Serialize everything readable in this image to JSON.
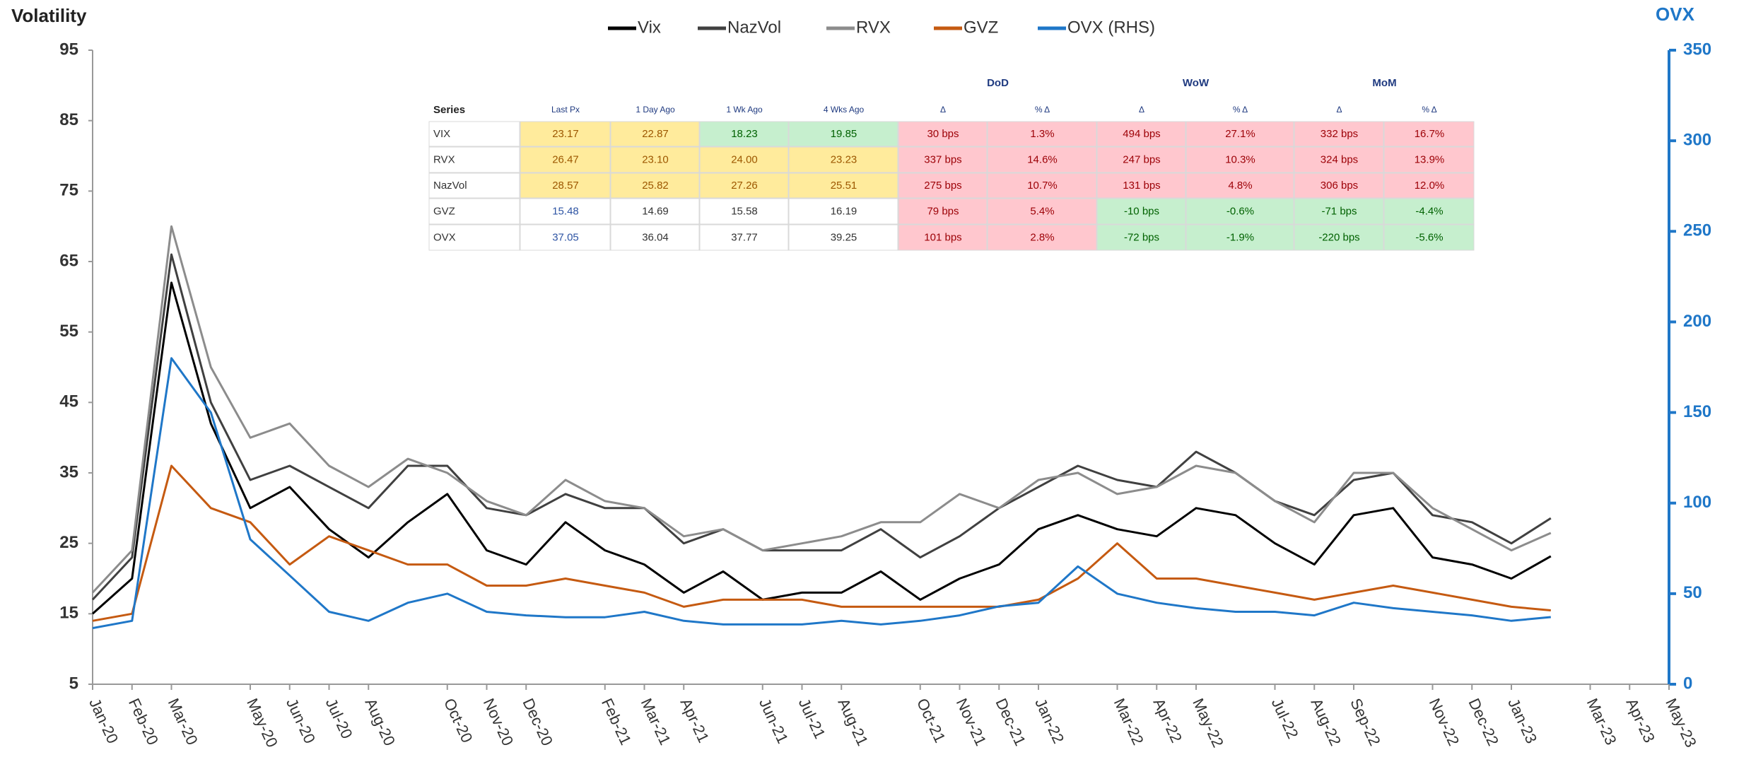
{
  "chart_data": {
    "type": "line",
    "y_label": "Volatility",
    "y2_label": "OVX",
    "x": [
      "2020-01",
      "2020-02",
      "2020-03",
      "2020-04",
      "2020-05",
      "2020-06",
      "2020-07",
      "2020-08",
      "2020-09",
      "2020-10",
      "2020-11",
      "2020-12",
      "2021-01",
      "2021-02",
      "2021-03",
      "2021-04",
      "2021-05",
      "2021-06",
      "2021-07",
      "2021-08",
      "2021-09",
      "2021-10",
      "2021-11",
      "2021-12",
      "2022-01",
      "2022-02",
      "2022-03",
      "2022-04",
      "2022-05",
      "2022-06",
      "2022-07",
      "2022-08",
      "2022-09",
      "2022-10",
      "2022-11",
      "2022-12",
      "2023-01",
      "2023-02"
    ],
    "xlim": [
      "2020-01",
      "2023-05"
    ],
    "xticks": [
      {
        "value": "2020-01",
        "label": "Jan-20"
      },
      {
        "value": "2020-02",
        "label": "Feb-20"
      },
      {
        "value": "2020-03",
        "label": "Mar-20"
      },
      {
        "value": "2020-05",
        "label": "May-20"
      },
      {
        "value": "2020-06",
        "label": "Jun-20"
      },
      {
        "value": "2020-07",
        "label": "Jul-20"
      },
      {
        "value": "2020-08",
        "label": "Aug-20"
      },
      {
        "value": "2020-10",
        "label": "Oct-20"
      },
      {
        "value": "2020-11",
        "label": "Nov-20"
      },
      {
        "value": "2020-12",
        "label": "Dec-20"
      },
      {
        "value": "2021-02",
        "label": "Feb-21"
      },
      {
        "value": "2021-03",
        "label": "Mar-21"
      },
      {
        "value": "2021-04",
        "label": "Apr-21"
      },
      {
        "value": "2021-06",
        "label": "Jun-21"
      },
      {
        "value": "2021-07",
        "label": "Jul-21"
      },
      {
        "value": "2021-08",
        "label": "Aug-21"
      },
      {
        "value": "2021-10",
        "label": "Oct-21"
      },
      {
        "value": "2021-11",
        "label": "Nov-21"
      },
      {
        "value": "2021-12",
        "label": "Dec-21"
      },
      {
        "value": "2022-01",
        "label": "Jan-22"
      },
      {
        "value": "2022-03",
        "label": "Mar-22"
      },
      {
        "value": "2022-04",
        "label": "Apr-22"
      },
      {
        "value": "2022-05",
        "label": "May-22"
      },
      {
        "value": "2022-07",
        "label": "Jul-22"
      },
      {
        "value": "2022-08",
        "label": "Aug-22"
      },
      {
        "value": "2022-09",
        "label": "Sep-22"
      },
      {
        "value": "2022-11",
        "label": "Nov-22"
      },
      {
        "value": "2022-12",
        "label": "Dec-22"
      },
      {
        "value": "2023-01",
        "label": "Jan-23"
      },
      {
        "value": "2023-03",
        "label": "Mar-23"
      },
      {
        "value": "2023-04",
        "label": "Apr-23"
      },
      {
        "value": "2023-05",
        "label": "May-23"
      }
    ],
    "ylim": [
      5,
      95
    ],
    "yticks": [
      5,
      15,
      25,
      35,
      45,
      55,
      65,
      75,
      85,
      95
    ],
    "y2lim": [
      0,
      350
    ],
    "y2ticks": [
      0,
      50,
      100,
      150,
      200,
      250,
      300,
      350
    ],
    "series": [
      {
        "name": "Vix",
        "color": "#000000",
        "values": [
          15,
          20,
          62,
          42,
          30,
          33,
          27,
          23,
          28,
          32,
          24,
          22,
          28,
          24,
          22,
          18,
          21,
          17,
          18,
          18,
          21,
          17,
          20,
          22,
          27,
          29,
          27,
          26,
          30,
          29,
          25,
          22,
          29,
          30,
          23,
          22,
          20,
          23.17
        ]
      },
      {
        "name": "NazVol",
        "color": "#404040",
        "values": [
          17,
          23,
          66,
          45,
          34,
          36,
          33,
          30,
          36,
          36,
          30,
          29,
          32,
          30,
          30,
          25,
          27,
          24,
          24,
          24,
          27,
          23,
          26,
          30,
          33,
          36,
          34,
          33,
          38,
          35,
          31,
          29,
          34,
          35,
          29,
          28,
          25,
          28.57
        ]
      },
      {
        "name": "RVX",
        "color": "#8c8c8c",
        "values": [
          18,
          24,
          70,
          50,
          40,
          42,
          36,
          33,
          37,
          35,
          31,
          29,
          34,
          31,
          30,
          26,
          27,
          24,
          25,
          26,
          28,
          28,
          32,
          30,
          34,
          35,
          32,
          33,
          36,
          35,
          31,
          28,
          35,
          35,
          30,
          27,
          24,
          26.47
        ]
      },
      {
        "name": "GVZ",
        "color": "#c55a11",
        "values": [
          14,
          15,
          36,
          30,
          28,
          22,
          26,
          24,
          22,
          22,
          19,
          19,
          20,
          19,
          18,
          16,
          17,
          17,
          17,
          16,
          16,
          16,
          16,
          16,
          17,
          20,
          25,
          20,
          20,
          19,
          18,
          17,
          18,
          19,
          18,
          17,
          16,
          15.48
        ]
      },
      {
        "name": "OVX (RHS)",
        "color": "#1f77c8",
        "axis": "y2",
        "values": [
          31,
          35,
          180,
          150,
          80,
          60,
          40,
          35,
          45,
          50,
          40,
          38,
          37,
          37,
          40,
          35,
          33,
          33,
          33,
          35,
          33,
          35,
          38,
          43,
          45,
          65,
          50,
          45,
          42,
          40,
          40,
          38,
          45,
          42,
          40,
          38,
          35,
          37.05
        ]
      }
    ],
    "table": {
      "groups": [
        "DoD",
        "WoW",
        "MoM"
      ],
      "header": [
        "Series",
        "Last Px",
        "1 Day Ago",
        "1 Wk Ago",
        "4 Wks Ago",
        "Δ",
        "% Δ",
        "Δ",
        "% Δ",
        "Δ",
        "% Δ"
      ],
      "rows": [
        [
          "VIX",
          "23.17",
          "22.87",
          "18.23",
          "19.85",
          "30 bps",
          "1.3%",
          "494 bps",
          "27.1%",
          "332 bps",
          "16.7%"
        ],
        [
          "RVX",
          "26.47",
          "23.10",
          "24.00",
          "23.23",
          "337 bps",
          "14.6%",
          "247 bps",
          "10.3%",
          "324 bps",
          "13.9%"
        ],
        [
          "NazVol",
          "28.57",
          "25.82",
          "27.26",
          "25.51",
          "275 bps",
          "10.7%",
          "131 bps",
          "4.8%",
          "306 bps",
          "12.0%"
        ],
        [
          "GVZ",
          "15.48",
          "14.69",
          "15.58",
          "16.19",
          "79 bps",
          "5.4%",
          "-10 bps",
          "-0.6%",
          "-71 bps",
          "-4.4%"
        ],
        [
          "OVX",
          "37.05",
          "36.04",
          "37.77",
          "39.25",
          "101 bps",
          "2.8%",
          "-72 bps",
          "-1.9%",
          "-220 bps",
          "-5.6%"
        ]
      ]
    }
  }
}
